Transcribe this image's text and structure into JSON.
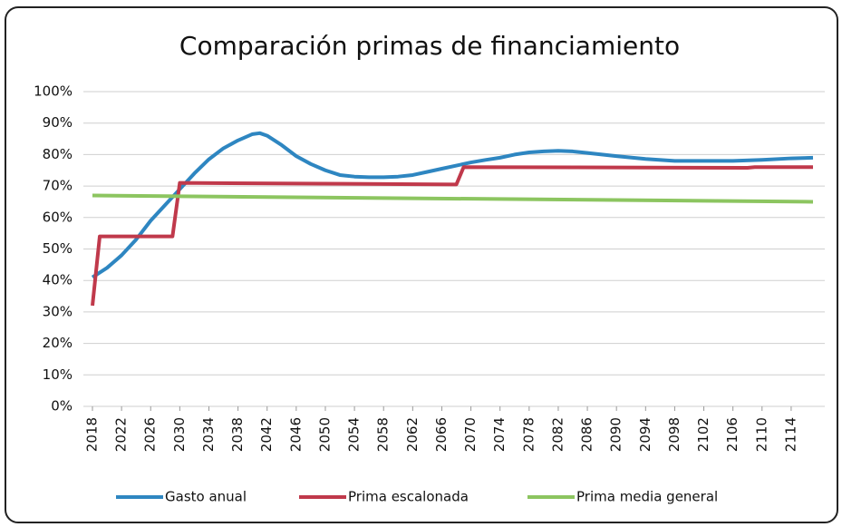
{
  "chart_data": {
    "type": "line",
    "title": "Comparación primas de financiamiento",
    "xlim": [
      2018,
      2117
    ],
    "xticks": [
      2018,
      2022,
      2026,
      2030,
      2034,
      2038,
      2042,
      2046,
      2050,
      2054,
      2058,
      2062,
      2066,
      2070,
      2074,
      2078,
      2082,
      2086,
      2090,
      2094,
      2098,
      2102,
      2106,
      2110,
      2114
    ],
    "ylim": [
      0,
      100
    ],
    "yticks": [
      {
        "value": 0,
        "label": "0%"
      },
      {
        "value": 10,
        "label": "10%"
      },
      {
        "value": 20,
        "label": "20%"
      },
      {
        "value": 30,
        "label": "30%"
      },
      {
        "value": 40,
        "label": "40%"
      },
      {
        "value": 50,
        "label": "50%"
      },
      {
        "value": 60,
        "label": "60%"
      },
      {
        "value": 70,
        "label": "70%"
      },
      {
        "value": 80,
        "label": "80%"
      },
      {
        "value": 90,
        "label": "90%"
      },
      {
        "value": 100,
        "label": "100%"
      }
    ],
    "grid": true,
    "legend": "bottom",
    "series": [
      {
        "name": "Gasto anual",
        "color": "#2e86c1",
        "x": [
          2018,
          2020,
          2022,
          2024,
          2026,
          2028,
          2030,
          2032,
          2034,
          2036,
          2038,
          2040,
          2041,
          2042,
          2044,
          2046,
          2048,
          2050,
          2052,
          2054,
          2056,
          2058,
          2060,
          2062,
          2064,
          2066,
          2068,
          2070,
          2072,
          2074,
          2076,
          2078,
          2080,
          2082,
          2084,
          2086,
          2088,
          2090,
          2094,
          2098,
          2102,
          2106,
          2110,
          2114,
          2117
        ],
        "values": [
          41,
          44,
          48,
          53,
          59,
          64,
          69,
          74,
          78.5,
          82,
          84.5,
          86.5,
          86.8,
          86,
          83,
          79.5,
          77,
          75,
          73.5,
          73,
          72.8,
          72.8,
          73,
          73.5,
          74.5,
          75.5,
          76.5,
          77.5,
          78.3,
          79,
          80,
          80.7,
          81,
          81.2,
          81,
          80.5,
          80,
          79.5,
          78.6,
          78,
          78,
          78,
          78.3,
          78.8,
          79
        ]
      },
      {
        "name": "Prima escalonada",
        "color": "#c0394b",
        "x": [
          2018,
          2019,
          2029,
          2030,
          2068,
          2069,
          2108,
          2109,
          2117
        ],
        "values": [
          32,
          54,
          54,
          71,
          70.5,
          76,
          75.8,
          76,
          76
        ]
      },
      {
        "name": "Prima media general",
        "color": "#8cc560",
        "x": [
          2018,
          2117
        ],
        "values": [
          67,
          65
        ]
      }
    ]
  }
}
